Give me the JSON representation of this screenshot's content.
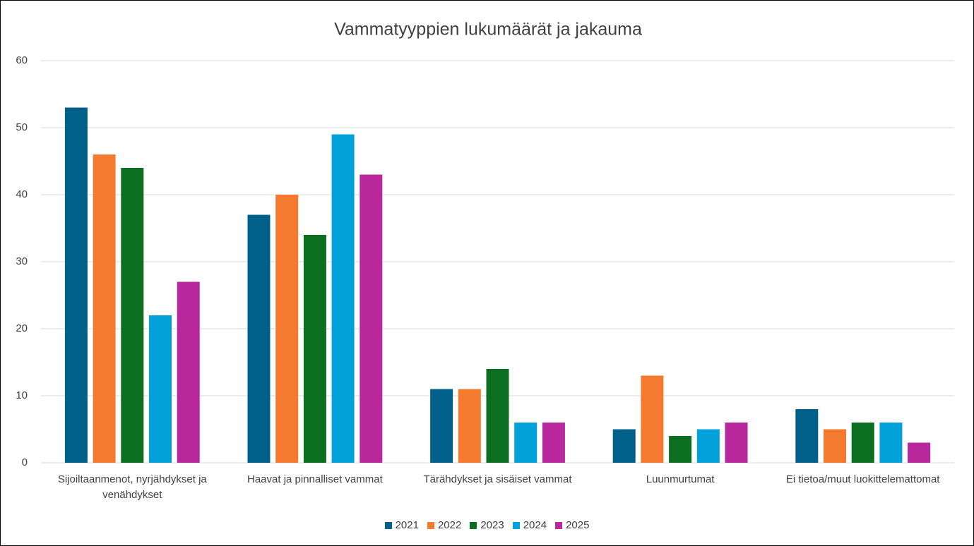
{
  "chart_data": {
    "type": "bar",
    "title": "Vammatyyppien lukumäärät ja jakauma",
    "categories": [
      "Sijoiltaanmenot, nyrjähdykset ja venähdykset",
      "Haavat ja pinnalliset vammat",
      "Tärähdykset ja sisäiset vammat",
      "Luunmurtumat",
      "Ei tietoa/muut luokittelemattomat"
    ],
    "series": [
      {
        "name": "2021",
        "color": "#00608a",
        "values": [
          53,
          37,
          11,
          5,
          8
        ]
      },
      {
        "name": "2022",
        "color": "#f47a30",
        "values": [
          46,
          40,
          11,
          13,
          5
        ]
      },
      {
        "name": "2023",
        "color": "#0b6e20",
        "values": [
          44,
          34,
          14,
          4,
          6
        ]
      },
      {
        "name": "2024",
        "color": "#02a1d9",
        "values": [
          22,
          49,
          6,
          5,
          6
        ]
      },
      {
        "name": "2025",
        "color": "#b8279b",
        "values": [
          27,
          43,
          6,
          6,
          3
        ]
      }
    ],
    "ylim": [
      0,
      60
    ],
    "yticks": [
      0,
      10,
      20,
      30,
      40,
      50,
      60
    ],
    "grid": true,
    "legend": "bottom"
  }
}
